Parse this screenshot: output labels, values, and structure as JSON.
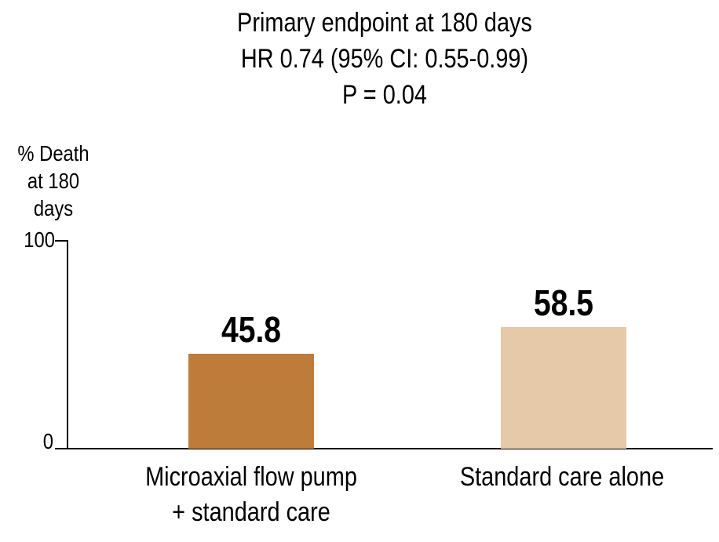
{
  "chart_data": {
    "type": "bar",
    "title_lines": [
      "Primary endpoint at 180 days",
      "HR 0.74 (95% CI: 0.55-0.99)",
      "P = 0.04"
    ],
    "ylabel_lines": [
      "% Death",
      "at 180 days"
    ],
    "categories": [
      "Microaxial flow pump + standard care",
      "Standard care alone"
    ],
    "category_lines": [
      [
        "Microaxial flow pump",
        "+ standard care"
      ],
      [
        "Standard care alone"
      ]
    ],
    "values": [
      45.8,
      58.5
    ],
    "bar_colors": [
      "#be7c3a",
      "#e6c9a8"
    ],
    "yticks": [
      "0",
      "100"
    ],
    "ylim": [
      0,
      100
    ],
    "grid": false,
    "legend": null,
    "axis_color": "#000000",
    "text_color": "#000000",
    "background_color": "#ffffff"
  }
}
